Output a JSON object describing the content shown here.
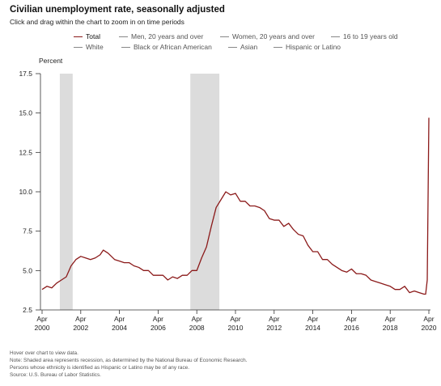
{
  "title": "Civilian unemployment rate, seasonally adjusted",
  "subtitle": "Click and drag within the chart to zoom in on time periods",
  "legend": {
    "items": [
      {
        "label": "Total",
        "color": "#8b1a1a",
        "active": true
      },
      {
        "label": "Men, 20 years and over",
        "color": "#888888",
        "active": false
      },
      {
        "label": "Women, 20 years and over",
        "color": "#888888",
        "active": false
      },
      {
        "label": "16 to 19 years old",
        "color": "#888888",
        "active": false
      },
      {
        "label": "White",
        "color": "#888888",
        "active": false
      },
      {
        "label": "Black or African American",
        "color": "#888888",
        "active": false
      },
      {
        "label": "Asian",
        "color": "#888888",
        "active": false
      },
      {
        "label": "Hispanic or Latino",
        "color": "#888888",
        "active": false
      }
    ]
  },
  "notes": [
    "Hover over chart to view data.",
    "Note: Shaded area represents recession, as determined by the National Bureau of Economic Research.",
    "Persons whose ethnicity is identified as Hispanic or Latino may be of any race.",
    "Source: U.S. Bureau of Labor Statistics."
  ],
  "chart_data": {
    "type": "line",
    "ylabel": "Percent",
    "ylim": [
      2.5,
      17.5
    ],
    "yticks": [
      "2.5",
      "5.0",
      "7.5",
      "10.0",
      "12.5",
      "15.0",
      "17.5"
    ],
    "xlim": [
      "2000-04",
      "2020-04"
    ],
    "xticks": [
      {
        "month": "Apr",
        "year": "2000"
      },
      {
        "month": "Apr",
        "year": "2002"
      },
      {
        "month": "Apr",
        "year": "2004"
      },
      {
        "month": "Apr",
        "year": "2006"
      },
      {
        "month": "Apr",
        "year": "2008"
      },
      {
        "month": "Apr",
        "year": "2010"
      },
      {
        "month": "Apr",
        "year": "2012"
      },
      {
        "month": "Apr",
        "year": "2014"
      },
      {
        "month": "Apr",
        "year": "2016"
      },
      {
        "month": "Apr",
        "year": "2018"
      },
      {
        "month": "Apr",
        "year": "2020"
      }
    ],
    "recessions": [
      {
        "start": "2001-03",
        "end": "2001-11"
      },
      {
        "start": "2007-12",
        "end": "2009-06"
      }
    ],
    "grid": false,
    "series": [
      {
        "name": "Total",
        "color": "#8b1a1a",
        "points": [
          [
            "2000-04",
            3.8
          ],
          [
            "2000-07",
            4.0
          ],
          [
            "2000-10",
            3.9
          ],
          [
            "2001-01",
            4.2
          ],
          [
            "2001-04",
            4.4
          ],
          [
            "2001-07",
            4.6
          ],
          [
            "2001-10",
            5.3
          ],
          [
            "2002-01",
            5.7
          ],
          [
            "2002-04",
            5.9
          ],
          [
            "2002-07",
            5.8
          ],
          [
            "2002-10",
            5.7
          ],
          [
            "2003-01",
            5.8
          ],
          [
            "2003-04",
            6.0
          ],
          [
            "2003-06",
            6.3
          ],
          [
            "2003-09",
            6.1
          ],
          [
            "2004-01",
            5.7
          ],
          [
            "2004-04",
            5.6
          ],
          [
            "2004-07",
            5.5
          ],
          [
            "2004-10",
            5.5
          ],
          [
            "2005-01",
            5.3
          ],
          [
            "2005-04",
            5.2
          ],
          [
            "2005-07",
            5.0
          ],
          [
            "2005-10",
            5.0
          ],
          [
            "2006-01",
            4.7
          ],
          [
            "2006-04",
            4.7
          ],
          [
            "2006-07",
            4.7
          ],
          [
            "2006-10",
            4.4
          ],
          [
            "2007-01",
            4.6
          ],
          [
            "2007-04",
            4.5
          ],
          [
            "2007-07",
            4.7
          ],
          [
            "2007-10",
            4.7
          ],
          [
            "2008-01",
            5.0
          ],
          [
            "2008-04",
            5.0
          ],
          [
            "2008-07",
            5.8
          ],
          [
            "2008-10",
            6.5
          ],
          [
            "2009-01",
            7.8
          ],
          [
            "2009-04",
            9.0
          ],
          [
            "2009-07",
            9.5
          ],
          [
            "2009-10",
            10.0
          ],
          [
            "2010-01",
            9.8
          ],
          [
            "2010-04",
            9.9
          ],
          [
            "2010-07",
            9.4
          ],
          [
            "2010-10",
            9.4
          ],
          [
            "2011-01",
            9.1
          ],
          [
            "2011-04",
            9.1
          ],
          [
            "2011-07",
            9.0
          ],
          [
            "2011-10",
            8.8
          ],
          [
            "2012-01",
            8.3
          ],
          [
            "2012-04",
            8.2
          ],
          [
            "2012-07",
            8.2
          ],
          [
            "2012-10",
            7.8
          ],
          [
            "2013-01",
            8.0
          ],
          [
            "2013-04",
            7.6
          ],
          [
            "2013-07",
            7.3
          ],
          [
            "2013-10",
            7.2
          ],
          [
            "2014-01",
            6.6
          ],
          [
            "2014-04",
            6.2
          ],
          [
            "2014-07",
            6.2
          ],
          [
            "2014-10",
            5.7
          ],
          [
            "2015-01",
            5.7
          ],
          [
            "2015-04",
            5.4
          ],
          [
            "2015-07",
            5.2
          ],
          [
            "2015-10",
            5.0
          ],
          [
            "2016-01",
            4.9
          ],
          [
            "2016-04",
            5.1
          ],
          [
            "2016-07",
            4.8
          ],
          [
            "2016-10",
            4.8
          ],
          [
            "2017-01",
            4.7
          ],
          [
            "2017-04",
            4.4
          ],
          [
            "2017-07",
            4.3
          ],
          [
            "2017-10",
            4.2
          ],
          [
            "2018-01",
            4.1
          ],
          [
            "2018-04",
            4.0
          ],
          [
            "2018-07",
            3.8
          ],
          [
            "2018-10",
            3.8
          ],
          [
            "2019-01",
            4.0
          ],
          [
            "2019-04",
            3.6
          ],
          [
            "2019-07",
            3.7
          ],
          [
            "2019-10",
            3.6
          ],
          [
            "2020-01",
            3.5
          ],
          [
            "2020-02",
            3.5
          ],
          [
            "2020-03",
            4.4
          ],
          [
            "2020-04",
            14.7
          ]
        ]
      }
    ]
  }
}
